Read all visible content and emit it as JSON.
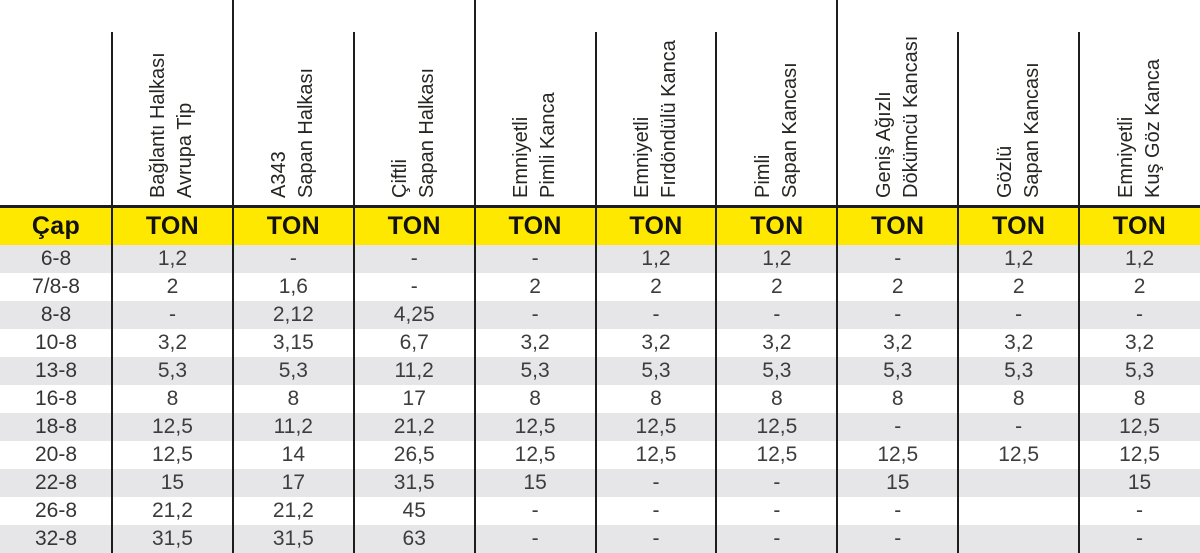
{
  "table": {
    "cap_label": "Çap",
    "ton_label": "TON",
    "columns": [
      {
        "label": [
          "Bağlantı Halkası",
          "Avrupa Tip"
        ]
      },
      {
        "label": [
          "A343",
          "Sapan Halkası"
        ]
      },
      {
        "label": [
          "Çiftli",
          "Sapan Halkası"
        ]
      },
      {
        "label": [
          "Emniyetli",
          "Pimli Kanca"
        ]
      },
      {
        "label": [
          "Emniyetli",
          "Fırdöndülü Kanca"
        ]
      },
      {
        "label": [
          "Pimli",
          "Sapan Kancası"
        ]
      },
      {
        "label": [
          "Geniş Ağızlı",
          "Dökümcü Kancası"
        ]
      },
      {
        "label": [
          "Gözlü",
          "Sapan Kancası"
        ]
      },
      {
        "label": [
          "Emniyetli",
          "Kuş Göz Kanca"
        ]
      }
    ],
    "rows": [
      {
        "cap": "6-8",
        "values": [
          "1,2",
          "-",
          "-",
          "-",
          "1,2",
          "1,2",
          "-",
          "1,2",
          "1,2"
        ]
      },
      {
        "cap": "7/8-8",
        "values": [
          "2",
          "1,6",
          "-",
          "2",
          "2",
          "2",
          "2",
          "2",
          "2"
        ]
      },
      {
        "cap": "8-8",
        "values": [
          "-",
          "2,12",
          "4,25",
          "-",
          "-",
          "-",
          "-",
          "-",
          "-"
        ]
      },
      {
        "cap": "10-8",
        "values": [
          "3,2",
          "3,15",
          "6,7",
          "3,2",
          "3,2",
          "3,2",
          "3,2",
          "3,2",
          "3,2"
        ]
      },
      {
        "cap": "13-8",
        "values": [
          "5,3",
          "5,3",
          "11,2",
          "5,3",
          "5,3",
          "5,3",
          "5,3",
          "5,3",
          "5,3"
        ]
      },
      {
        "cap": "16-8",
        "values": [
          "8",
          "8",
          "17",
          "8",
          "8",
          "8",
          "8",
          "8",
          "8"
        ]
      },
      {
        "cap": "18-8",
        "values": [
          "12,5",
          "11,2",
          "21,2",
          "12,5",
          "12,5",
          "12,5",
          "-",
          "-",
          "12,5"
        ]
      },
      {
        "cap": "20-8",
        "values": [
          "12,5",
          "14",
          "26,5",
          "12,5",
          "12,5",
          "12,5",
          "12,5",
          "12,5",
          "12,5"
        ]
      },
      {
        "cap": "22-8",
        "values": [
          "15",
          "17",
          "31,5",
          "15",
          "-",
          "-",
          "15",
          "",
          "15"
        ]
      },
      {
        "cap": "26-8",
        "values": [
          "21,2",
          "21,2",
          "45",
          "-",
          "-",
          "-",
          "-",
          "",
          "-"
        ]
      },
      {
        "cap": "32-8",
        "values": [
          "31,5",
          "31,5",
          "63",
          "-",
          "-",
          "-",
          "-",
          "",
          "-"
        ]
      }
    ]
  },
  "colors": {
    "header_row_yellow": "#FFE800",
    "alt_row_gray": "#E6E6E8",
    "line_black": "#1D1D1B",
    "text_dark": "#3D3D3D"
  }
}
